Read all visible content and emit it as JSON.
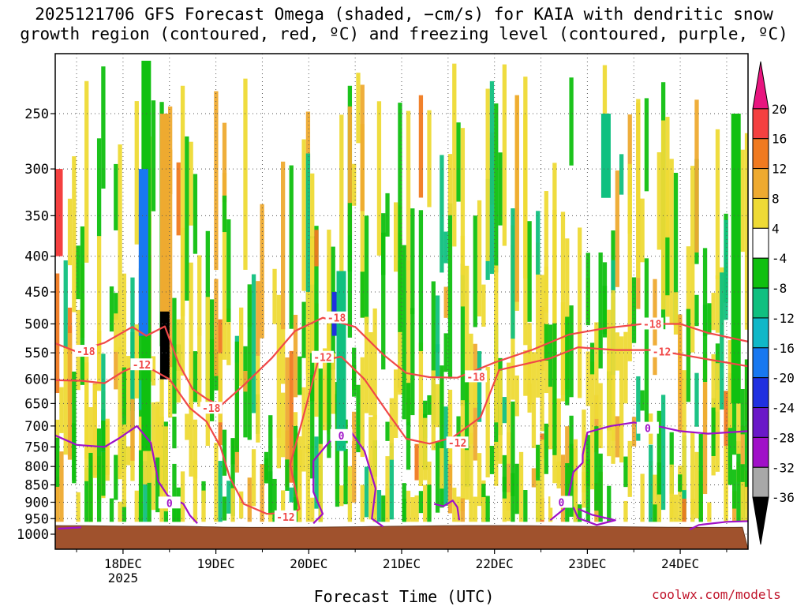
{
  "header": {
    "line1": "2025121706 GFS Forecast Omega (shaded, −cm/s) for KAIA with dendritic snow",
    "line2": "growth region (contoured, red, ºC) and freezing level (contoured, purple, ºC)"
  },
  "chart_data": {
    "type": "heatmap",
    "title": "2025121706 GFS Forecast Omega (shaded, −cm/s) for KAIA with dendritic snow growth region (contoured, red, ºC) and freezing level (contoured, purple, ºC)",
    "xlabel": "Forecast Time (UTC)",
    "ylabel": "",
    "xlim": [
      17.27,
      24.73
    ],
    "ylim": [
      1025,
      200
    ],
    "x_ticks": [
      {
        "value": 18,
        "label": "18DEC",
        "sublabel": "2025"
      },
      {
        "value": 19,
        "label": "19DEC"
      },
      {
        "value": 20,
        "label": "20DEC"
      },
      {
        "value": 21,
        "label": "21DEC"
      },
      {
        "value": 22,
        "label": "22DEC"
      },
      {
        "value": 23,
        "label": "23DEC"
      },
      {
        "value": 24,
        "label": "24DEC"
      }
    ],
    "y_ticks": [
      250,
      300,
      350,
      400,
      450,
      500,
      550,
      600,
      650,
      700,
      750,
      800,
      850,
      900,
      950,
      1000
    ],
    "grid": true,
    "colorbar": {
      "labels": [
        "20",
        "16",
        "12",
        "8",
        "4",
        "-4",
        "-8",
        "-12",
        "-16",
        "-20",
        "-24",
        "-28",
        "-32",
        "-36"
      ],
      "colors": [
        "#e8157f",
        "#f44040",
        "#f07a20",
        "#eeaa30",
        "#eeda35",
        "#ffffff",
        "#10c010",
        "#10c080",
        "#10b8c8",
        "#1878f0",
        "#2030e0",
        "#6a18c8",
        "#a010c8",
        "#a8a8a8",
        "#000000"
      ]
    },
    "contours": [
      {
        "name": "dendritic -18C",
        "color": "#f04848",
        "label": "-18",
        "points": [
          [
            17.27,
            533
          ],
          [
            17.5,
            548
          ],
          [
            17.8,
            532
          ],
          [
            18.1,
            505
          ],
          [
            18.25,
            520
          ],
          [
            18.45,
            504
          ],
          [
            18.6,
            570
          ],
          [
            18.75,
            620
          ],
          [
            18.9,
            640
          ],
          [
            19.05,
            655
          ],
          [
            19.3,
            612
          ],
          [
            19.6,
            560
          ],
          [
            19.85,
            512
          ],
          [
            20.15,
            490
          ],
          [
            20.5,
            505
          ],
          [
            20.8,
            553
          ],
          [
            21.05,
            588
          ],
          [
            21.3,
            596
          ],
          [
            21.6,
            597
          ],
          [
            22.0,
            568
          ],
          [
            22.4,
            545
          ],
          [
            22.8,
            518
          ],
          [
            23.2,
            507
          ],
          [
            23.6,
            500
          ],
          [
            24.0,
            500
          ],
          [
            24.3,
            515
          ],
          [
            24.73,
            530
          ]
        ],
        "labels": [
          [
            17.6,
            547
          ],
          [
            18.95,
            660
          ],
          [
            20.3,
            490
          ],
          [
            21.8,
            595
          ],
          [
            23.7,
            500
          ]
        ]
      },
      {
        "name": "dendritic -12C",
        "color": "#f04848",
        "label": "-12",
        "points": [
          [
            17.27,
            602
          ],
          [
            17.55,
            603
          ],
          [
            17.8,
            608
          ],
          [
            18.0,
            585
          ],
          [
            18.2,
            570
          ],
          [
            18.5,
            600
          ],
          [
            18.72,
            660
          ],
          [
            18.9,
            690
          ],
          [
            19.05,
            750
          ],
          [
            19.15,
            830
          ],
          [
            19.3,
            905
          ],
          [
            19.55,
            935
          ],
          [
            19.85,
            930
          ],
          [
            19.9,
            920
          ],
          [
            19.8,
            795
          ],
          [
            19.95,
            672
          ],
          [
            20.1,
            565
          ],
          [
            20.35,
            557
          ],
          [
            20.6,
            600
          ],
          [
            20.85,
            670
          ],
          [
            21.05,
            730
          ],
          [
            21.3,
            742
          ],
          [
            21.55,
            727
          ],
          [
            21.85,
            680
          ],
          [
            22.05,
            582
          ],
          [
            22.3,
            572
          ],
          [
            22.6,
            560
          ],
          [
            22.9,
            540
          ],
          [
            23.3,
            545
          ],
          [
            23.7,
            545
          ],
          [
            24.0,
            553
          ],
          [
            24.4,
            565
          ],
          [
            24.73,
            575
          ]
        ],
        "labels": [
          [
            18.2,
            572
          ],
          [
            19.75,
            944
          ],
          [
            20.15,
            558
          ],
          [
            21.6,
            740
          ],
          [
            23.8,
            548
          ]
        ]
      },
      {
        "name": "freezing 0C",
        "color": "#a010c8",
        "label": "0",
        "points": [
          [
            17.27,
            722
          ],
          [
            17.5,
            745
          ],
          [
            17.8,
            750
          ],
          [
            17.95,
            730
          ],
          [
            18.15,
            700
          ],
          [
            18.3,
            740
          ],
          [
            18.38,
            840
          ],
          [
            18.48,
            880
          ],
          [
            18.65,
            905
          ],
          [
            18.72,
            940
          ],
          [
            18.8,
            965
          ]
        ],
        "labels": [
          [
            18.5,
            902
          ]
        ]
      },
      {
        "name": "freezing 0C b",
        "color": "#a010c8",
        "label": "0",
        "points": [
          [
            20.05,
            965
          ],
          [
            20.15,
            935
          ],
          [
            20.05,
            870
          ],
          [
            20.05,
            785
          ],
          [
            20.25,
            730
          ],
          [
            20.45,
            712
          ],
          [
            20.6,
            760
          ],
          [
            20.72,
            860
          ],
          [
            20.68,
            950
          ],
          [
            20.8,
            975
          ]
        ],
        "labels": [
          [
            20.35,
            722
          ]
        ]
      },
      {
        "name": "freezing 0C c",
        "color": "#a010c8",
        "label": "0",
        "points": [
          [
            21.35,
            905
          ],
          [
            21.45,
            912
          ],
          [
            21.55,
            895
          ],
          [
            21.6,
            915
          ],
          [
            21.62,
            955
          ]
        ],
        "labels": []
      },
      {
        "name": "freezing 0C d",
        "color": "#a010c8",
        "label": "0",
        "points": [
          [
            22.6,
            955
          ],
          [
            22.75,
            920
          ],
          [
            22.8,
            880
          ],
          [
            22.85,
            815
          ],
          [
            22.95,
            790
          ],
          [
            22.95,
            770
          ],
          [
            23.0,
            715
          ],
          [
            23.25,
            700
          ],
          [
            23.5,
            692
          ],
          [
            23.75,
            700
          ],
          [
            24.0,
            712
          ],
          [
            24.3,
            718
          ],
          [
            24.73,
            712
          ]
        ],
        "labels": [
          [
            22.72,
            900
          ],
          [
            23.65,
            705
          ]
        ]
      },
      {
        "name": "freezing 0C e",
        "color": "#a010c8",
        "label": "0",
        "points": [
          [
            22.85,
            915
          ],
          [
            22.9,
            948
          ],
          [
            23.1,
            970
          ],
          [
            23.3,
            955
          ],
          [
            23.05,
            938
          ],
          [
            22.9,
            920
          ]
        ],
        "labels": []
      },
      {
        "name": "freezing 0C f",
        "color": "#a010c8",
        "label": "0",
        "points": [
          [
            24.1,
            985
          ],
          [
            24.2,
            970
          ],
          [
            24.5,
            960
          ],
          [
            24.73,
            958
          ]
        ],
        "labels": []
      },
      {
        "name": "freezing 0C g",
        "color": "#a010c8",
        "label": "0",
        "points": [
          [
            17.3,
            982
          ],
          [
            17.55,
            978
          ]
        ],
        "labels": []
      }
    ],
    "omega_patches": [
      {
        "x": 18.25,
        "p1": 210,
        "p2": 760,
        "band": "-8"
      },
      {
        "x": 18.22,
        "p1": 300,
        "p2": 520,
        "band": "-20"
      },
      {
        "x": 18.45,
        "p1": 420,
        "p2": 600,
        "band": "-36"
      },
      {
        "x": 18.45,
        "p1": 250,
        "p2": 480,
        "band": "8"
      },
      {
        "x": 17.3,
        "p1": 300,
        "p2": 400,
        "band": "16"
      },
      {
        "x": 20.3,
        "p1": 450,
        "p2": 520,
        "band": "-24"
      },
      {
        "x": 20.35,
        "p1": 420,
        "p2": 760,
        "band": "-12"
      },
      {
        "x": 24.6,
        "p1": 250,
        "p2": 650,
        "band": "-8"
      },
      {
        "x": 23.2,
        "p1": 250,
        "p2": 330,
        "band": "-12"
      }
    ],
    "terrain_pressure_hPa": 975
  },
  "footer": {
    "xlabel": "Forecast Time (UTC)",
    "credit": "coolwx.com/models"
  }
}
